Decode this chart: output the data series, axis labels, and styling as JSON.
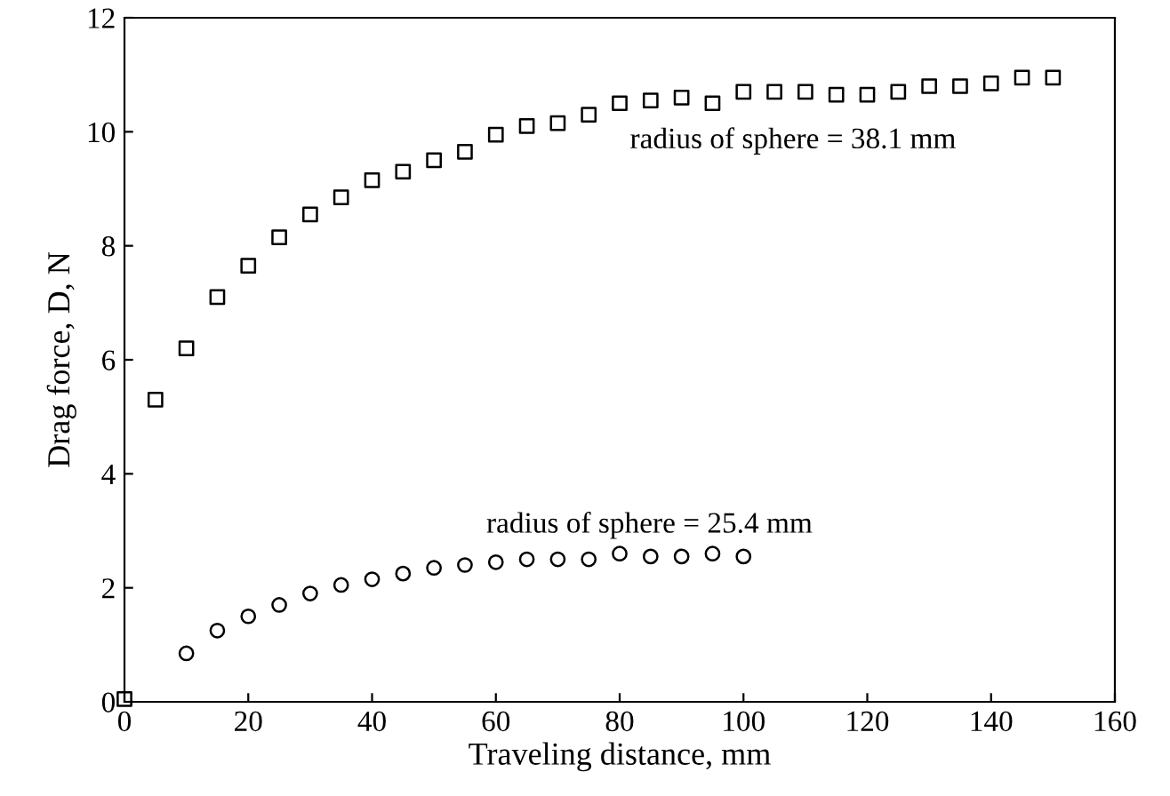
{
  "chart_data": {
    "type": "scatter",
    "xlabel": "Traveling distance, mm",
    "ylabel": "Drag force, D, N",
    "xlim": [
      0,
      160
    ],
    "ylim": [
      0,
      12
    ],
    "xticks": [
      0,
      20,
      40,
      60,
      80,
      100,
      120,
      140,
      160
    ],
    "yticks": [
      0,
      2,
      4,
      6,
      8,
      10,
      12
    ],
    "grid": false,
    "legend": false,
    "series": [
      {
        "color": "#000000",
        "marker": "square",
        "x": [
          0,
          5,
          10,
          15,
          20,
          25,
          30,
          35,
          40,
          45,
          50,
          55,
          60,
          65,
          70,
          75,
          80,
          85,
          90,
          95,
          100,
          105,
          110,
          115,
          120,
          125,
          130,
          135,
          140,
          145,
          150
        ],
        "values": [
          0.05,
          5.3,
          6.2,
          7.1,
          7.65,
          8.15,
          8.55,
          8.85,
          9.15,
          9.3,
          9.5,
          9.65,
          9.95,
          10.1,
          10.15,
          10.3,
          10.5,
          10.55,
          10.6,
          10.5,
          10.7,
          10.7,
          10.7,
          10.65,
          10.65,
          10.7,
          10.8,
          10.8,
          10.85,
          10.95,
          10.95
        ]
      },
      {
        "color": "#000000",
        "marker": "circle",
        "x": [
          10,
          15,
          20,
          25,
          30,
          35,
          40,
          45,
          50,
          55,
          60,
          65,
          70,
          75,
          80,
          85,
          90,
          95,
          100
        ],
        "values": [
          0.85,
          1.25,
          1.5,
          1.7,
          1.9,
          2.05,
          2.15,
          2.25,
          2.35,
          2.4,
          2.45,
          2.5,
          2.5,
          2.5,
          2.6,
          2.55,
          2.55,
          2.6,
          2.55
        ]
      }
    ],
    "annotations": [
      "radius of sphere = 38.1 mm",
      "radius of sphere = 25.4 mm"
    ]
  }
}
